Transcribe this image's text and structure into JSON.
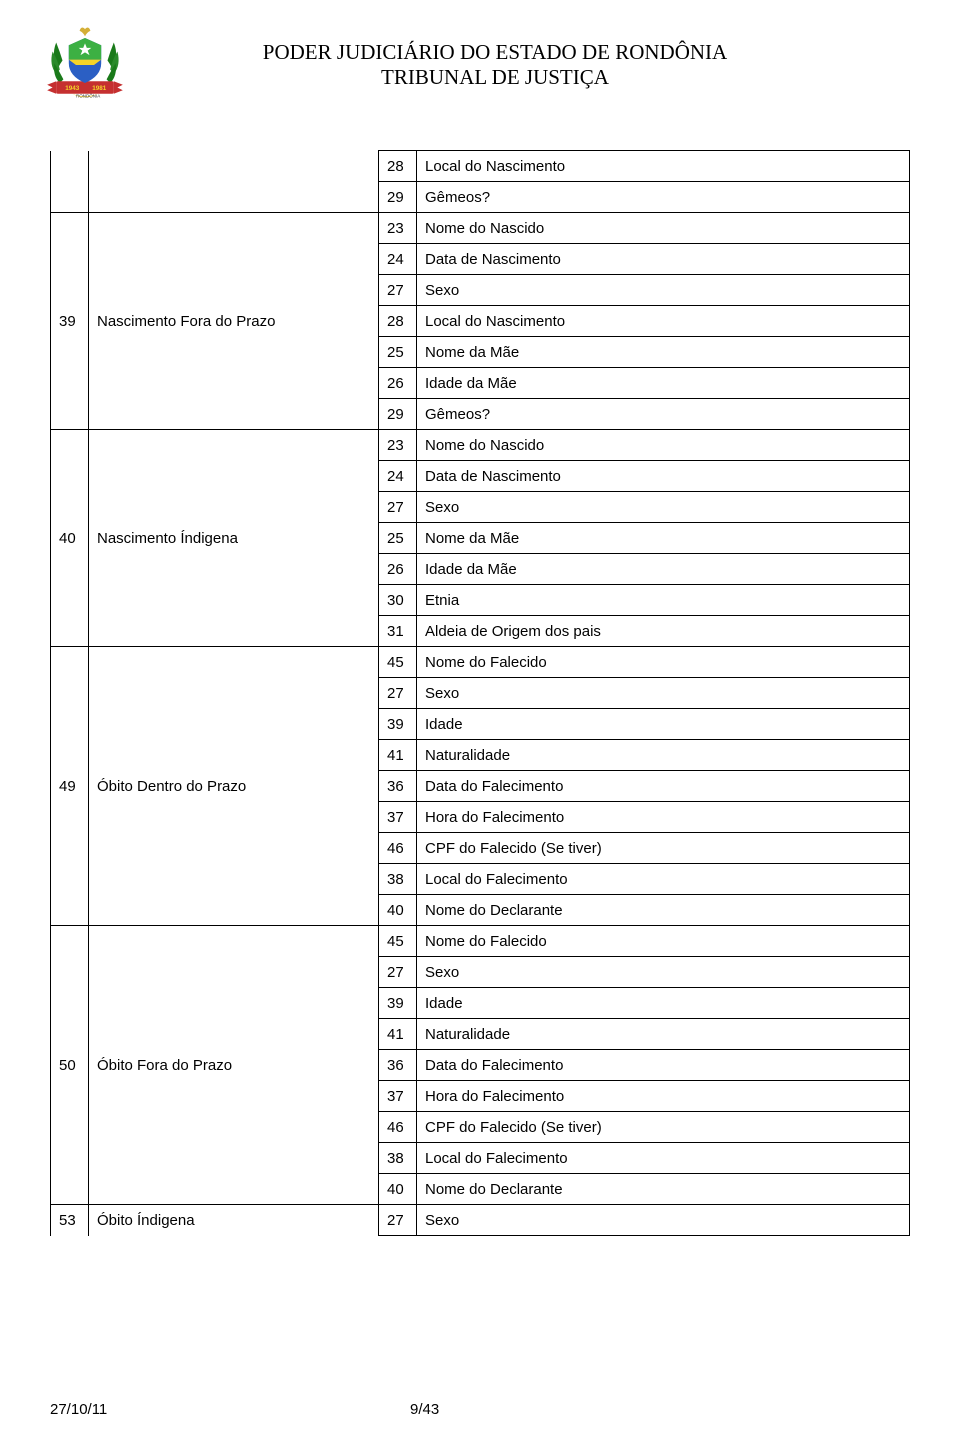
{
  "header": {
    "line1": "PODER JUDICIÁRIO DO ESTADO DE RONDÔNIA",
    "line2": "TRIBUNAL DE JUSTIÇA"
  },
  "logo": {
    "ribbon_color": "#c53030",
    "leaf_color": "#1a7a1a",
    "center_blue": "#2b5fc4",
    "center_green": "#3cb043",
    "center_yellow": "#f5d428",
    "star_color": "#ffffff"
  },
  "table": {
    "sections": [
      {
        "left_code": "",
        "left_label": "",
        "continuation": true,
        "rows": [
          {
            "c": "28",
            "d": "Local do Nascimento"
          },
          {
            "c": "29",
            "d": "Gêmeos?"
          }
        ]
      },
      {
        "left_code": "39",
        "left_label": "Nascimento Fora do Prazo",
        "rows": [
          {
            "c": "23",
            "d": "Nome do Nascido"
          },
          {
            "c": "24",
            "d": "Data de Nascimento"
          },
          {
            "c": "27",
            "d": "Sexo"
          },
          {
            "c": "28",
            "d": "Local do Nascimento"
          },
          {
            "c": "25",
            "d": "Nome da Mãe"
          },
          {
            "c": "26",
            "d": "Idade da Mãe"
          },
          {
            "c": "29",
            "d": "Gêmeos?"
          }
        ]
      },
      {
        "left_code": "40",
        "left_label": "Nascimento Índigena",
        "rows": [
          {
            "c": "23",
            "d": "Nome do Nascido"
          },
          {
            "c": "24",
            "d": "Data de Nascimento"
          },
          {
            "c": "27",
            "d": "Sexo"
          },
          {
            "c": "25",
            "d": "Nome da Mãe"
          },
          {
            "c": "26",
            "d": "Idade da Mãe"
          },
          {
            "c": "30",
            "d": "Etnia"
          },
          {
            "c": "31",
            "d": "Aldeia de Origem dos pais"
          }
        ]
      },
      {
        "left_code": "49",
        "left_label": "Óbito Dentro do Prazo",
        "rows": [
          {
            "c": "45",
            "d": "Nome do Falecido"
          },
          {
            "c": "27",
            "d": "Sexo"
          },
          {
            "c": "39",
            "d": "Idade"
          },
          {
            "c": "41",
            "d": "Naturalidade"
          },
          {
            "c": "36",
            "d": "Data do Falecimento"
          },
          {
            "c": "37",
            "d": "Hora do Falecimento"
          },
          {
            "c": "46",
            "d": "CPF do Falecido (Se tiver)"
          },
          {
            "c": "38",
            "d": "Local do Falecimento"
          },
          {
            "c": "40",
            "d": "Nome do Declarante"
          }
        ]
      },
      {
        "left_code": "50",
        "left_label": "Óbito Fora do Prazo",
        "rows": [
          {
            "c": "45",
            "d": "Nome do Falecido"
          },
          {
            "c": "27",
            "d": "Sexo"
          },
          {
            "c": "39",
            "d": "Idade"
          },
          {
            "c": "41",
            "d": "Naturalidade"
          },
          {
            "c": "36",
            "d": "Data do Falecimento"
          },
          {
            "c": "37",
            "d": "Hora do Falecimento"
          },
          {
            "c": "46",
            "d": "CPF do Falecido (Se tiver)"
          },
          {
            "c": "38",
            "d": "Local do Falecimento"
          },
          {
            "c": "40",
            "d": "Nome do Declarante"
          }
        ]
      },
      {
        "left_code": "53",
        "left_label": "Óbito Índigena",
        "continues_next": true,
        "rows": [
          {
            "c": "27",
            "d": "Sexo"
          }
        ]
      }
    ]
  },
  "footer": {
    "date": "27/10/11",
    "page": "9/43"
  }
}
